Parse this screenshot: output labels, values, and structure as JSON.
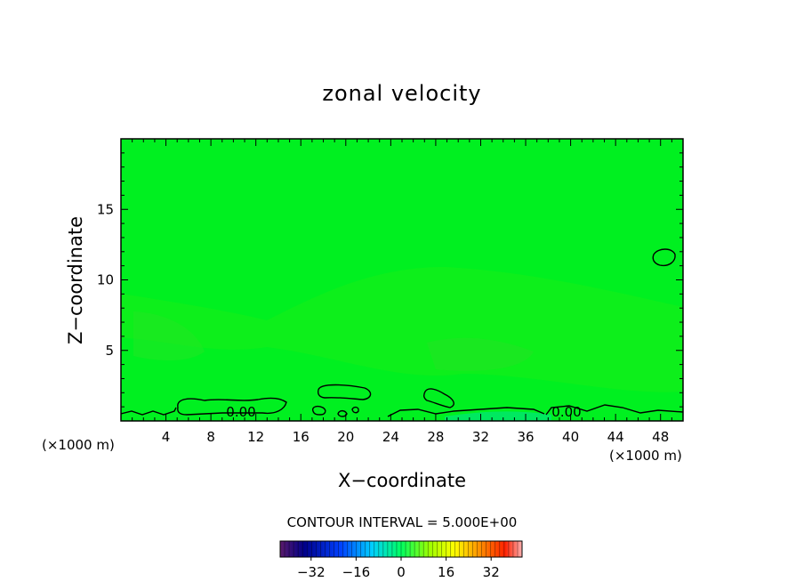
{
  "chart_data": {
    "type": "heatmap",
    "title": "zonal velocity",
    "xlabel": "X−coordinate",
    "ylabel": "Z−coordinate",
    "x_unit_left": "(×1000 m)",
    "x_unit_right": "(×1000 m)",
    "xlim": [
      0,
      50
    ],
    "ylim": [
      0,
      20
    ],
    "x_ticks": [
      4,
      8,
      12,
      16,
      20,
      24,
      28,
      32,
      36,
      40,
      44,
      48
    ],
    "y_ticks": [
      5,
      10,
      15
    ],
    "field_color": "#00f020",
    "contour_interval_text": "CONTOUR INTERVAL = 5.000E+00",
    "contour_labels": [
      {
        "text": "0.00",
        "x": 10.9,
        "y": 0.7
      },
      {
        "text": "0.00",
        "x": 39.4,
        "y": 0.7
      }
    ],
    "colorbar": {
      "range": [
        -43,
        43
      ],
      "ticks": [
        -32,
        -16,
        0,
        16,
        32
      ]
    }
  }
}
